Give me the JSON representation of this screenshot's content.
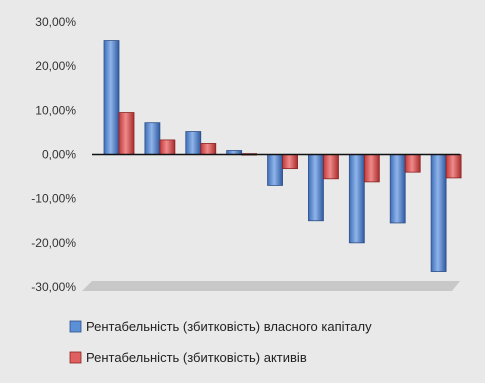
{
  "chart_data": {
    "type": "bar",
    "orientation": "vertical",
    "categories": [
      "",
      "",
      "",
      "",
      "",
      "",
      "",
      "",
      ""
    ],
    "series": [
      {
        "name": "Рентабельність (збитковість) власного капіталу",
        "color": "#5b8fd6",
        "values": [
          25.8,
          7.2,
          5.2,
          0.9,
          -7.0,
          -15.0,
          -20.0,
          -15.5,
          -26.5
        ]
      },
      {
        "name": "Рентабельність (збитковість) активів",
        "color": "#e06060",
        "values": [
          9.5,
          3.3,
          2.5,
          0.2,
          -3.2,
          -5.5,
          -6.2,
          -4.0,
          -5.3
        ]
      }
    ],
    "y_ticks": [
      "30,00%",
      "20,00%",
      "10,00%",
      "0,00%",
      "-10,00%",
      "-20,00%",
      "-30,00%"
    ],
    "ylim": [
      -30,
      30
    ],
    "grid": false,
    "legend_position": "bottom"
  }
}
